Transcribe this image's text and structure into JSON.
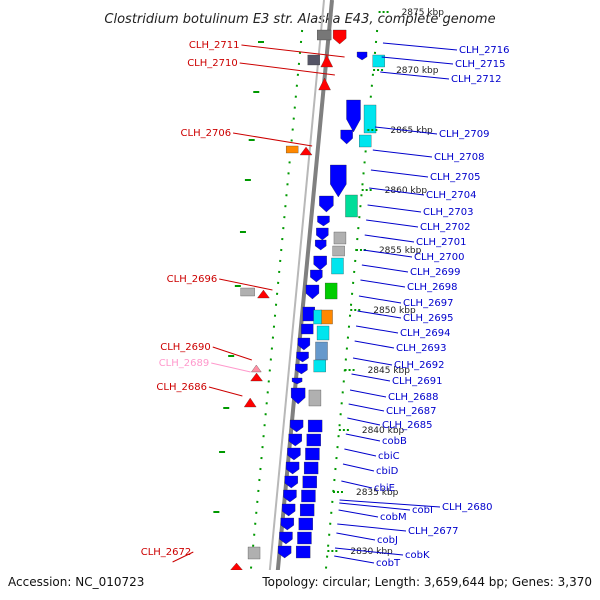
{
  "title": "Clostridium botulinum E3 str. Alaska E43, complete genome",
  "footer": {
    "accession": "Accession: NC_010723",
    "summary": "Topology: circular; Length: 3,659,644 bp; Genes: 3,370"
  },
  "colors": {
    "left_labels": "#cc0000",
    "faded_label": "#ff99cc",
    "right_labels": "#0000cc",
    "backbone": "#808080",
    "tick_green": "#009900",
    "gene_blue": "#0000ff",
    "gene_cyan": "#00e5ee",
    "gene_red": "#ff0000",
    "gene_orange": "#ff8800",
    "gene_green": "#00cc00",
    "gene_gray": "#b0b0b0"
  },
  "kbp_ticks": [
    "2875 kbp",
    "2870 kbp",
    "2865 kbp",
    "2860 kbp",
    "2855 kbp",
    "2850 kbp",
    "2845 kbp",
    "2840 kbp",
    "2835 kbp",
    "2830 kbp"
  ],
  "left_genes": [
    "CLH_2711",
    "CLH_2710",
    "CLH_2706",
    "CLH_2696",
    "CLH_2690",
    "CLH_2689",
    "CLH_2686",
    "CLH_2672"
  ],
  "right_genes": [
    "CLH_2716",
    "CLH_2715",
    "CLH_2712",
    "CLH_2709",
    "CLH_2708",
    "CLH_2705",
    "CLH_2704",
    "CLH_2703",
    "CLH_2702",
    "CLH_2701",
    "CLH_2700",
    "CLH_2699",
    "CLH_2698",
    "CLH_2697",
    "CLH_2695",
    "CLH_2694",
    "CLH_2693",
    "CLH_2692",
    "CLH_2691",
    "CLH_2688",
    "CLH_2687",
    "CLH_2685",
    "cobB",
    "cbiC",
    "cbiD",
    "cbiE",
    "cobI",
    "CLH_2680",
    "cobM",
    "CLH_2677",
    "cobJ",
    "cobK",
    "cobT"
  ]
}
